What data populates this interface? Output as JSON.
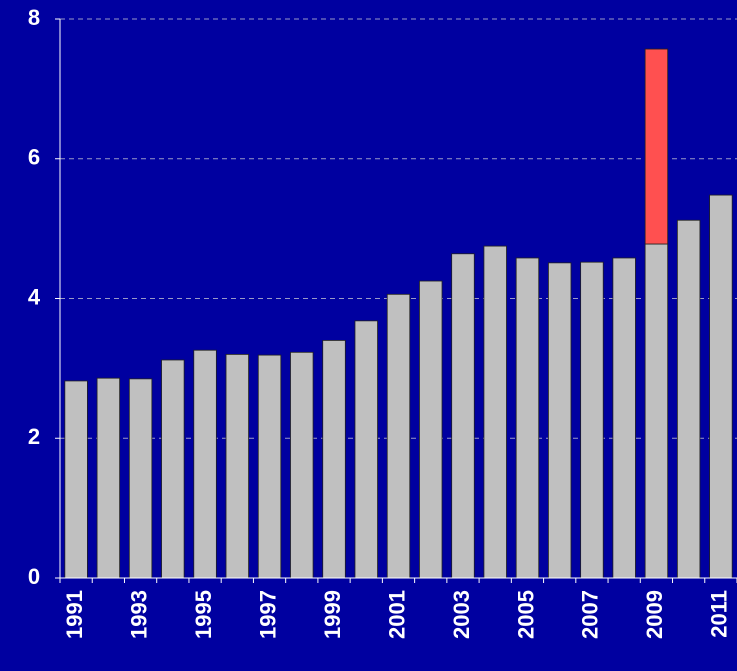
{
  "chart_data": {
    "type": "stacked_bar",
    "categories": [
      "1991",
      null,
      "1993",
      null,
      "1995",
      null,
      "1997",
      null,
      "1999",
      null,
      "2001",
      null,
      "2003",
      null,
      "2005",
      null,
      "2007",
      null,
      "2009",
      null,
      "2011"
    ],
    "series": [
      {
        "color": "#c0c0c0",
        "values": [
          2.82,
          2.86,
          2.85,
          3.12,
          3.26,
          3.2,
          3.19,
          3.23,
          3.4,
          3.68,
          4.06,
          4.25,
          4.64,
          4.75,
          4.58,
          4.51,
          4.52,
          4.58,
          4.78,
          5.12,
          5.48
        ]
      },
      {
        "color": "#ff5050",
        "values": [
          null,
          null,
          null,
          null,
          null,
          null,
          null,
          null,
          null,
          null,
          null,
          null,
          null,
          null,
          null,
          null,
          null,
          null,
          2.79,
          null,
          null
        ]
      }
    ],
    "ylim": [
      0,
      8
    ],
    "yticks": [
      0,
      2,
      4,
      6,
      8
    ],
    "grid": true
  }
}
